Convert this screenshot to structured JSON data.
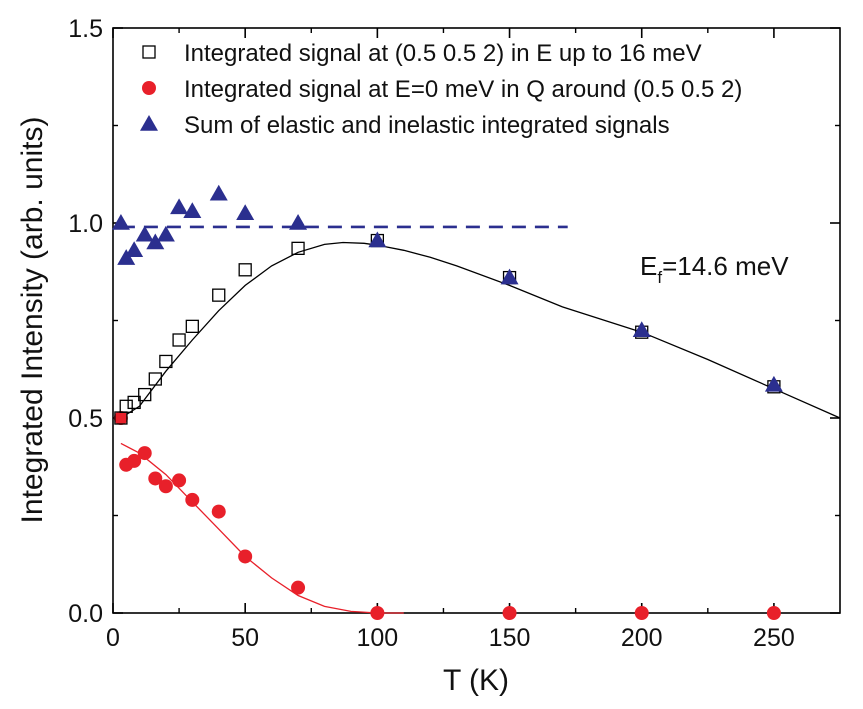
{
  "chart_data": {
    "type": "scatter",
    "xlabel": "T (K)",
    "ylabel": "Integrated Intensity (arb. units)",
    "xlim": [
      0,
      275
    ],
    "ylim": [
      0,
      1.5
    ],
    "x_ticks": [
      0,
      50,
      100,
      150,
      200,
      250
    ],
    "x_tick_labels": [
      "0",
      "50",
      "100",
      "150",
      "200",
      "250"
    ],
    "y_ticks": [
      0.0,
      0.5,
      1.0,
      1.5
    ],
    "y_tick_labels": [
      "0.0",
      "0.5",
      "1.0",
      "1.5"
    ],
    "legend_position": "top-left",
    "annotation": {
      "main": "E",
      "sub": "f",
      "rest": "=14.6 meV"
    },
    "series": [
      {
        "name": "Integrated signal at (0.5 0.5 2) in E up to 16 meV",
        "marker": "open-square",
        "color": "#000000",
        "x": [
          3,
          5,
          8,
          12,
          16,
          20,
          25,
          30,
          40,
          50,
          70,
          100,
          150,
          200,
          250
        ],
        "y": [
          0.5,
          0.53,
          0.54,
          0.56,
          0.6,
          0.645,
          0.7,
          0.735,
          0.815,
          0.88,
          0.935,
          0.955,
          0.86,
          0.72,
          0.58
        ]
      },
      {
        "name": "Integrated signal at E=0 meV in Q around (0.5 0.5 2)",
        "marker": "filled-circle",
        "color": "#e8202a",
        "x": [
          3,
          5,
          8,
          12,
          16,
          20,
          25,
          30,
          40,
          50,
          70,
          100,
          150,
          200,
          250
        ],
        "y": [
          0.5,
          0.38,
          0.39,
          0.41,
          0.345,
          0.325,
          0.34,
          0.29,
          0.26,
          0.145,
          0.065,
          0.0,
          0.0,
          0.0,
          0.0
        ]
      },
      {
        "name": "Sum of elastic and inelastic integrated signals",
        "marker": "filled-triangle",
        "color": "#2b2f8f",
        "x": [
          3,
          5,
          8,
          12,
          16,
          20,
          25,
          30,
          40,
          50,
          70,
          100,
          150,
          200,
          250
        ],
        "y": [
          1.0,
          0.91,
          0.93,
          0.97,
          0.95,
          0.97,
          1.04,
          1.03,
          1.075,
          1.025,
          1.0,
          0.955,
          0.86,
          0.725,
          0.585
        ]
      }
    ],
    "lines": [
      {
        "kind": "dashed",
        "color": "#2b2f8f",
        "x": [
          3,
          172
        ],
        "y": [
          0.99,
          0.99
        ]
      },
      {
        "kind": "fit",
        "color": "#000000",
        "x": [
          3,
          10,
          20,
          30,
          40,
          50,
          60,
          70,
          80,
          87,
          95,
          100,
          110,
          120,
          130,
          150,
          170,
          200,
          225,
          250,
          275
        ],
        "y": [
          0.5,
          0.53,
          0.62,
          0.7,
          0.775,
          0.84,
          0.89,
          0.925,
          0.945,
          0.95,
          0.948,
          0.943,
          0.93,
          0.912,
          0.89,
          0.84,
          0.785,
          0.72,
          0.65,
          0.575,
          0.5
        ]
      },
      {
        "kind": "fit",
        "color": "#e8202a",
        "x": [
          3,
          10,
          20,
          30,
          40,
          50,
          60,
          70,
          80,
          90,
          100,
          110
        ],
        "y": [
          0.435,
          0.41,
          0.355,
          0.285,
          0.215,
          0.145,
          0.09,
          0.045,
          0.017,
          0.004,
          0.0,
          0.0
        ]
      }
    ]
  }
}
